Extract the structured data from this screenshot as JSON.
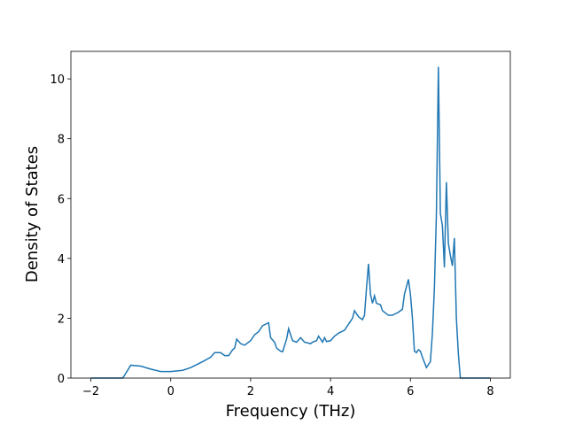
{
  "chart_data": {
    "type": "line",
    "x_label": "Frequency (THz)",
    "y_label": "Density of States",
    "color": "#1f77b4",
    "xlim": [
      -2.5,
      8.5
    ],
    "ylim": [
      0,
      10.92
    ],
    "xticks": [
      {
        "value": -2,
        "label": "−2"
      },
      0,
      2,
      4,
      6,
      8
    ],
    "yticks": [
      0,
      2,
      4,
      6,
      8,
      10
    ],
    "x": [
      -2,
      -1.2,
      -1.0,
      -0.75,
      -0.5,
      -0.25,
      0,
      0.3,
      0.5,
      0.8,
      1.0,
      1.1,
      1.25,
      1.35,
      1.45,
      1.55,
      1.6,
      1.65,
      1.75,
      1.85,
      2.0,
      2.1,
      2.2,
      2.3,
      2.45,
      2.5,
      2.6,
      2.65,
      2.75,
      2.8,
      2.9,
      2.95,
      3.05,
      3.15,
      3.25,
      3.35,
      3.5,
      3.55,
      3.65,
      3.7,
      3.8,
      3.85,
      3.9,
      4.0,
      4.1,
      4.2,
      4.35,
      4.45,
      4.55,
      4.6,
      4.7,
      4.8,
      4.85,
      4.9,
      4.95,
      5.0,
      5.05,
      5.1,
      5.15,
      5.25,
      5.3,
      5.45,
      5.55,
      5.7,
      5.8,
      5.85,
      5.95,
      6.0,
      6.05,
      6.1,
      6.15,
      6.2,
      6.25,
      6.3,
      6.4,
      6.5,
      6.55,
      6.6,
      6.65,
      6.7,
      6.75,
      6.8,
      6.85,
      6.9,
      6.95,
      7.0,
      7.05,
      7.1,
      7.15,
      7.2,
      7.25,
      8.0
    ],
    "values": [
      0,
      0,
      0.43,
      0.4,
      0.3,
      0.22,
      0.22,
      0.26,
      0.35,
      0.55,
      0.7,
      0.85,
      0.85,
      0.75,
      0.75,
      0.95,
      1.0,
      1.3,
      1.15,
      1.1,
      1.25,
      1.45,
      1.55,
      1.75,
      1.85,
      1.35,
      1.2,
      1.0,
      0.9,
      0.88,
      1.3,
      1.65,
      1.25,
      1.2,
      1.35,
      1.2,
      1.15,
      1.2,
      1.25,
      1.4,
      1.2,
      1.35,
      1.22,
      1.25,
      1.4,
      1.5,
      1.6,
      1.8,
      2.0,
      2.25,
      2.05,
      1.95,
      2.1,
      3.0,
      3.82,
      2.8,
      2.5,
      2.75,
      2.5,
      2.45,
      2.25,
      2.1,
      2.1,
      2.2,
      2.3,
      2.8,
      3.3,
      2.8,
      2.0,
      0.9,
      0.85,
      0.95,
      0.9,
      0.7,
      0.35,
      0.55,
      1.5,
      3.0,
      5.5,
      10.4,
      5.5,
      5.1,
      3.7,
      6.55,
      4.5,
      4.1,
      3.75,
      4.68,
      2.0,
      0.8,
      0,
      0
    ]
  }
}
